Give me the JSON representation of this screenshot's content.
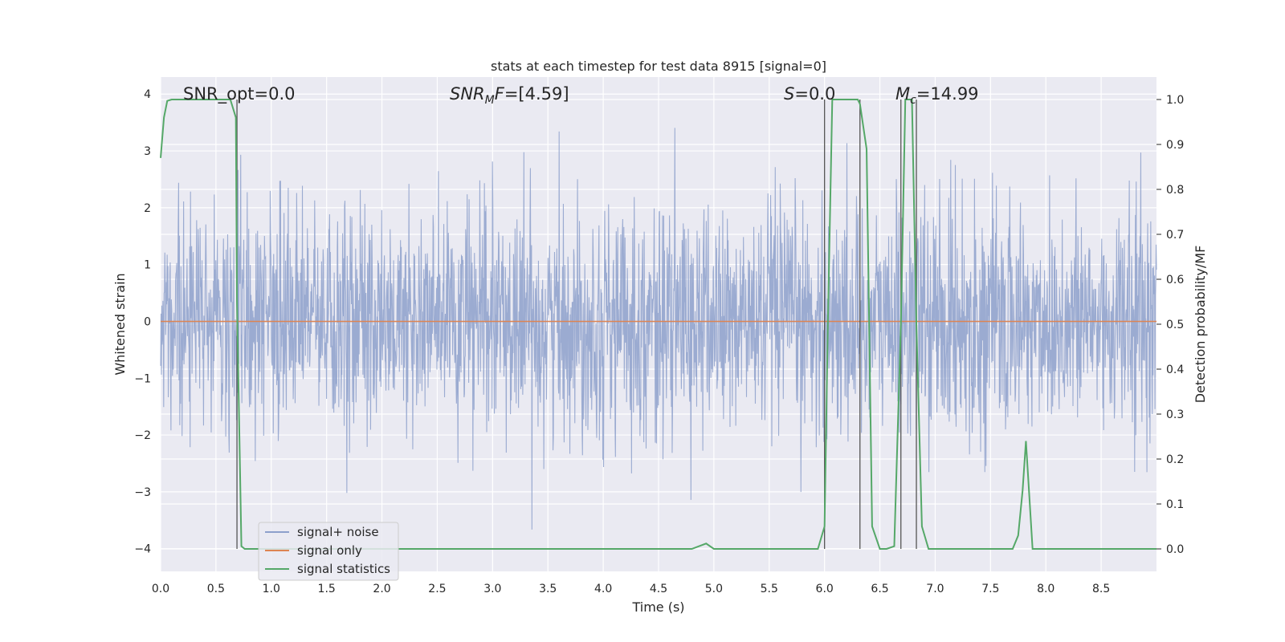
{
  "chart_data": {
    "type": "line",
    "title": "stats at each timestep for test data 8915 [signal=0]",
    "xlabel": "Time (s)",
    "ylabel": "Whitened strain",
    "ylabel_right": "Detection probability/MF",
    "xlim": [
      0,
      9.0
    ],
    "ylim": [
      -4.4,
      4.3
    ],
    "ylim_right": [
      -0.05,
      1.05
    ],
    "xticks": [
      "0.0",
      "0.5",
      "1.0",
      "1.5",
      "2.0",
      "2.5",
      "3.0",
      "3.5",
      "4.0",
      "4.5",
      "5.0",
      "5.5",
      "6.0",
      "6.5",
      "7.0",
      "7.5",
      "8.0",
      "8.5"
    ],
    "yticks": [
      "4",
      "3",
      "2",
      "1",
      "0",
      "−1",
      "−2",
      "−3",
      "−4"
    ],
    "yticks_right": [
      "1.0",
      "0.9",
      "0.8",
      "0.7",
      "0.6",
      "0.5",
      "0.4",
      "0.3",
      "0.2",
      "0.1",
      "0.0"
    ],
    "grid": true,
    "legend_position": "lower-left",
    "annotations": [
      {
        "text": "SNR_opt=0.0",
        "x": 0.2
      },
      {
        "text_main": "SNR",
        "text_sub": "M",
        "text_after": "F=[4.59]",
        "x": 2.6
      },
      {
        "text_main": "S",
        "text_after": "=0.0",
        "x": 5.6
      },
      {
        "text_main": "M",
        "text_sub": "c",
        "text_after": "=14.99",
        "x": 6.6
      }
    ],
    "series": [
      {
        "name": "signal+ noise",
        "color": "#8da0cb",
        "description_values": "white Gaussian noise, std ~1, peaks up to ~3.9 and down to ~-4.0",
        "noise_std": 1.0
      },
      {
        "name": "signal only",
        "color": "#dd8452",
        "values_constant": 0.0
      },
      {
        "name": "signal statistics",
        "color": "#55a868",
        "x": [
          0.0,
          0.03,
          0.06,
          0.1,
          0.2,
          0.3,
          0.4,
          0.5,
          0.6,
          0.63,
          0.68,
          0.69,
          0.73,
          0.76,
          0.8,
          1.0,
          1.5,
          2.0,
          2.5,
          3.0,
          3.5,
          4.0,
          4.5,
          4.8,
          4.93,
          5.0,
          5.5,
          5.94,
          6.0,
          6.03,
          6.07,
          6.3,
          6.32,
          6.38,
          6.43,
          6.5,
          6.56,
          6.63,
          6.69,
          6.73,
          6.79,
          6.83,
          6.88,
          6.94,
          7.0,
          7.5,
          7.7,
          7.75,
          7.79,
          7.82,
          7.85,
          7.88,
          8.0,
          8.5,
          9.0
        ],
        "values": [
          0.87,
          0.96,
          0.997,
          1.0,
          1.0,
          1.0,
          1.0,
          1.0,
          1.0,
          1.0,
          0.96,
          0.55,
          0.006,
          0.0,
          0.0,
          0.0,
          0.0,
          0.0,
          0.0,
          0.0,
          0.0,
          0.0,
          0.0,
          0.0,
          0.012,
          0.0,
          0.0,
          0.0,
          0.05,
          0.5,
          1.0,
          1.0,
          0.99,
          0.89,
          0.05,
          0.0,
          0.0,
          0.006,
          0.5,
          1.0,
          1.0,
          0.5,
          0.05,
          0.0,
          0.0,
          0.0,
          0.0,
          0.03,
          0.13,
          0.24,
          0.12,
          0.0,
          0.0,
          0.0,
          0.0
        ]
      }
    ],
    "vertical_markers_x": [
      0.69,
      6.0,
      6.32,
      6.69,
      6.83
    ]
  },
  "legend": {
    "items": [
      "signal+ noise",
      "signal only",
      "signal statistics"
    ]
  }
}
